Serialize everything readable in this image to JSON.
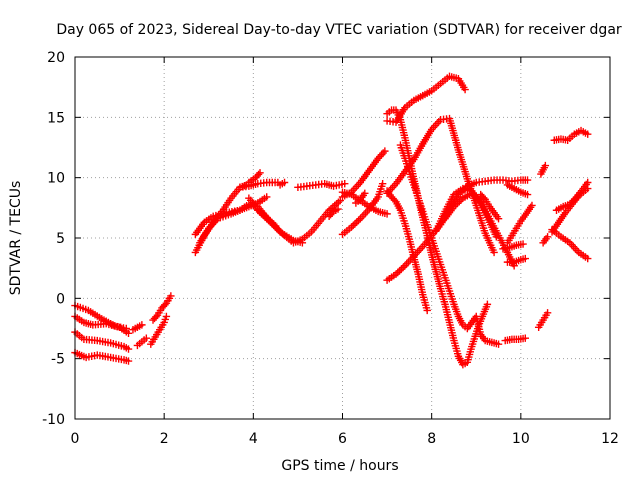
{
  "chart_data": {
    "type": "scatter",
    "title": "Day 065 of 2023, Sidereal Day-to-day VTEC variation (SDTVAR) for receiver dgar",
    "xlabel": "GPS time / hours",
    "ylabel": "SDTVAR / TECUs",
    "xlim": [
      0,
      12
    ],
    "ylim": [
      -10,
      20
    ],
    "x_ticks": [
      0,
      2,
      4,
      6,
      8,
      10,
      12
    ],
    "y_ticks": [
      -10,
      -5,
      0,
      5,
      10,
      15,
      20
    ],
    "grid": true,
    "marker": "plus",
    "color": "#ff0000",
    "series": [
      {
        "x": [
          0.0,
          0.3,
          0.6,
          0.9,
          1.15
        ],
        "y": [
          -0.6,
          -1.0,
          -1.7,
          -2.3,
          -2.5
        ]
      },
      {
        "x": [
          0.0,
          0.2,
          0.4,
          0.7,
          1.0,
          1.2
        ],
        "y": [
          -1.5,
          -2.0,
          -2.2,
          -2.1,
          -2.4,
          -2.9
        ]
      },
      {
        "x": [
          0.0,
          0.2,
          0.5,
          0.8,
          1.1,
          1.2
        ],
        "y": [
          -2.8,
          -3.4,
          -3.5,
          -3.7,
          -4.0,
          -4.2
        ]
      },
      {
        "x": [
          0.0,
          0.25,
          0.5,
          0.8,
          1.1,
          1.2
        ],
        "y": [
          -4.5,
          -4.9,
          -4.7,
          -4.9,
          -5.1,
          -5.2
        ]
      },
      {
        "x": [
          1.3,
          1.4,
          1.5
        ],
        "y": [
          -2.6,
          -2.4,
          -2.2
        ]
      },
      {
        "x": [
          1.4,
          1.5,
          1.6
        ],
        "y": [
          -3.9,
          -3.6,
          -3.3
        ]
      },
      {
        "x": [
          1.75,
          1.85,
          1.95,
          2.05,
          2.15
        ],
        "y": [
          -1.8,
          -1.4,
          -0.8,
          -0.4,
          0.2
        ]
      },
      {
        "x": [
          1.7,
          1.8,
          1.9,
          2.0,
          2.05
        ],
        "y": [
          -3.8,
          -3.2,
          -2.6,
          -2.0,
          -1.5
        ]
      },
      {
        "x": [
          2.7,
          2.9,
          3.1,
          3.3,
          3.5,
          3.7,
          3.85
        ],
        "y": [
          3.8,
          5.2,
          6.3,
          7.2,
          8.3,
          9.2,
          9.4
        ]
      },
      {
        "x": [
          2.7,
          2.9,
          3.1,
          3.4,
          3.7,
          3.9,
          4.1,
          4.3,
          4.6,
          4.9,
          5.1
        ],
        "y": [
          5.3,
          6.3,
          6.8,
          7.1,
          7.3,
          7.8,
          7.6,
          6.7,
          5.5,
          4.8,
          4.6
        ]
      },
      {
        "x": [
          2.8,
          3.0,
          3.2,
          3.5,
          3.7,
          3.9,
          4.1,
          4.3
        ],
        "y": [
          4.6,
          5.8,
          6.6,
          7.0,
          7.3,
          7.6,
          7.9,
          8.4
        ]
      },
      {
        "x": [
          3.7,
          3.9,
          4.1,
          4.3,
          4.55
        ],
        "y": [
          9.2,
          9.3,
          9.5,
          9.6,
          9.6
        ]
      },
      {
        "x": [
          3.9,
          4.05,
          4.15
        ],
        "y": [
          9.6,
          10.0,
          10.4
        ]
      },
      {
        "x": [
          3.9,
          4.1,
          4.3,
          4.5
        ],
        "y": [
          8.3,
          7.4,
          6.7,
          6.0
        ]
      },
      {
        "x": [
          4.1,
          4.3,
          4.5,
          4.7,
          4.9,
          5.1,
          5.3,
          5.5,
          5.7,
          5.95
        ],
        "y": [
          7.3,
          6.6,
          5.9,
          5.2,
          4.6,
          4.9,
          5.5,
          6.4,
          7.3,
          8.1
        ]
      },
      {
        "x": [
          4.6,
          4.7
        ],
        "y": [
          9.4,
          9.6
        ]
      },
      {
        "x": [
          5.0,
          5.2,
          5.4,
          5.6,
          5.8,
          6.05
        ],
        "y": [
          9.2,
          9.3,
          9.4,
          9.5,
          9.3,
          9.5
        ]
      },
      {
        "x": [
          5.7,
          5.8,
          5.9
        ],
        "y": [
          6.8,
          7.2,
          7.4
        ]
      },
      {
        "x": [
          6.0,
          6.2,
          6.4,
          6.6,
          6.8,
          6.95
        ],
        "y": [
          8.4,
          8.8,
          9.6,
          10.6,
          11.6,
          12.2
        ]
      },
      {
        "x": [
          6.0,
          6.2,
          6.4,
          6.6,
          6.8,
          7.0
        ],
        "y": [
          8.8,
          8.6,
          8.1,
          7.6,
          7.2,
          7.0
        ]
      },
      {
        "x": [
          6.0,
          6.2,
          6.4,
          6.6,
          6.8,
          6.9
        ],
        "y": [
          5.3,
          5.9,
          6.6,
          7.4,
          8.4,
          9.5
        ]
      },
      {
        "x": [
          6.3,
          6.4,
          6.5
        ],
        "y": [
          7.9,
          8.2,
          8.7
        ]
      },
      {
        "x": [
          7.0,
          7.1,
          7.2,
          7.3,
          7.4,
          7.5,
          7.6,
          7.7,
          7.8,
          7.9,
          8.0,
          8.1,
          8.2,
          8.3,
          8.4,
          8.5,
          8.6,
          8.7,
          8.8,
          8.9,
          9.05,
          9.25
        ],
        "y": [
          15.3,
          15.6,
          15.6,
          14.8,
          13.3,
          11.6,
          9.9,
          8.3,
          6.7,
          5.2,
          3.6,
          2.2,
          0.8,
          -0.5,
          -2.0,
          -3.5,
          -4.8,
          -5.5,
          -5.3,
          -4.0,
          -2.3,
          -0.5
        ]
      },
      {
        "x": [
          7.0,
          7.2,
          7.4,
          7.6,
          7.8,
          8.0,
          8.2,
          8.4,
          8.6,
          8.75
        ],
        "y": [
          14.7,
          14.6,
          15.8,
          16.4,
          16.8,
          17.2,
          17.8,
          18.4,
          18.2,
          17.3
        ]
      },
      {
        "x": [
          7.0,
          7.2,
          7.4,
          7.6,
          7.8,
          8.0,
          8.2,
          8.4,
          8.6,
          8.8,
          9.0,
          9.2,
          9.4
        ],
        "y": [
          8.7,
          9.5,
          10.5,
          11.5,
          12.8,
          14.0,
          14.8,
          14.9,
          12.3,
          9.9,
          7.7,
          5.4,
          3.8
        ]
      },
      {
        "x": [
          7.0,
          7.1,
          7.2,
          7.3,
          7.4,
          7.5,
          7.6,
          7.7,
          7.8,
          7.9
        ],
        "y": [
          8.9,
          8.4,
          8.0,
          7.3,
          6.2,
          4.9,
          3.4,
          2.0,
          0.3,
          -1.0
        ]
      },
      {
        "x": [
          7.3,
          7.4,
          7.5,
          7.6,
          7.7,
          7.8,
          7.9,
          8.0,
          8.1,
          8.2,
          8.3,
          8.4,
          8.5,
          8.6,
          8.7,
          8.8,
          8.9,
          9.0,
          9.1,
          9.2,
          9.3,
          9.4,
          9.5
        ],
        "y": [
          12.7,
          11.6,
          10.5,
          9.4,
          8.3,
          7.2,
          6.1,
          5.0,
          3.9,
          2.8,
          1.7,
          0.6,
          -0.5,
          -1.5,
          -2.2,
          -2.5,
          -2.0,
          -1.5,
          -3.0,
          -3.5,
          -3.6,
          -3.7,
          -3.8
        ]
      },
      {
        "x": [
          7.0,
          7.2,
          7.4,
          7.6,
          7.8,
          8.0,
          8.2,
          8.4,
          8.6,
          8.8,
          9.0,
          9.2,
          9.4,
          9.6,
          9.8,
          10.0,
          10.15
        ],
        "y": [
          1.5,
          2.0,
          2.7,
          3.5,
          4.3,
          5.2,
          6.1,
          7.3,
          8.6,
          9.3,
          9.6,
          9.7,
          9.8,
          9.8,
          9.7,
          9.8,
          9.8
        ]
      },
      {
        "x": [
          8.1,
          8.3,
          8.5,
          8.7,
          8.9,
          9.1,
          9.3,
          9.45
        ],
        "y": [
          5.6,
          7.2,
          8.6,
          9.1,
          8.9,
          7.9,
          6.3,
          5.1
        ]
      },
      {
        "x": [
          8.3,
          8.5,
          8.7,
          8.9,
          9.1,
          9.3,
          9.5,
          9.7,
          9.85
        ],
        "y": [
          6.6,
          7.6,
          8.3,
          8.7,
          8.0,
          6.6,
          5.2,
          3.8,
          2.7
        ]
      },
      {
        "x": [
          9.1,
          9.2,
          9.3,
          9.4,
          9.5
        ],
        "y": [
          8.6,
          8.2,
          7.6,
          7.1,
          6.6
        ]
      },
      {
        "x": [
          9.6,
          9.75,
          9.9,
          10.05
        ],
        "y": [
          4.1,
          4.2,
          4.4,
          4.5
        ]
      },
      {
        "x": [
          9.65,
          9.8,
          9.95,
          10.1
        ],
        "y": [
          -3.5,
          -3.4,
          -3.4,
          -3.3
        ]
      },
      {
        "x": [
          9.7,
          9.85,
          10.0,
          10.15
        ],
        "y": [
          9.4,
          9.1,
          8.8,
          8.6
        ]
      },
      {
        "x": [
          9.7,
          9.85,
          10.0,
          10.1
        ],
        "y": [
          3.0,
          3.0,
          3.2,
          3.3
        ]
      },
      {
        "x": [
          9.7,
          9.8,
          9.9,
          10.0,
          10.1,
          10.25
        ],
        "y": [
          4.6,
          5.2,
          5.8,
          6.4,
          6.9,
          7.7
        ]
      },
      {
        "x": [
          10.4,
          10.5,
          10.6
        ],
        "y": [
          -2.4,
          -1.8,
          -1.2
        ]
      },
      {
        "x": [
          10.45,
          10.55
        ],
        "y": [
          10.3,
          11.0
        ]
      },
      {
        "x": [
          10.5,
          10.6
        ],
        "y": [
          4.6,
          5.1
        ]
      },
      {
        "x": [
          10.75,
          10.9,
          11.05,
          11.2,
          11.35,
          11.5
        ],
        "y": [
          13.1,
          13.2,
          13.1,
          13.6,
          13.9,
          13.6
        ]
      },
      {
        "x": [
          10.8,
          10.95,
          11.1,
          11.25,
          11.4,
          11.5
        ],
        "y": [
          7.3,
          7.6,
          7.8,
          8.4,
          9.1,
          9.6
        ]
      },
      {
        "x": [
          10.7,
          10.85,
          11.0,
          11.15,
          11.3,
          11.5
        ],
        "y": [
          5.5,
          6.3,
          7.1,
          7.8,
          8.5,
          9.1
        ]
      },
      {
        "x": [
          10.7,
          10.9,
          11.1,
          11.3,
          11.5
        ],
        "y": [
          5.7,
          5.1,
          4.6,
          3.8,
          3.3
        ]
      }
    ]
  }
}
